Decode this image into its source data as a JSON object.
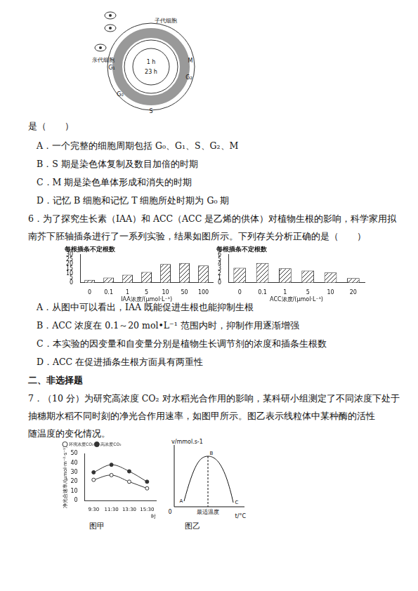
{
  "cell_cycle_diagram": {
    "cells": [
      "子代细胞",
      "亲代细胞"
    ],
    "phases": [
      "G₀",
      "G₁",
      "S",
      "G₂",
      "M"
    ],
    "durations": [
      "1 h",
      "23 h"
    ]
  },
  "question5": {
    "stem_tail": "是（　　）",
    "options": [
      "A．一个完整的细胞周期包括 G₀、G₁、S、G₂、M",
      "B．S 期是染色体复制及数目加倍的时期",
      "C．M 期是染色单体形成和消失的时期",
      "D．记忆 B 细胞和记忆 T 细胞所处时期为 G₀ 期"
    ]
  },
  "question6": {
    "stem": [
      "6．为了探究生长素（IAA）和 ACC（ACC 是乙烯的供体）对植物生根的影响，科学家用拟",
      "南芥下胚轴插条进行了一系列实验，结果如图所示。下列存关分析正确的是（　　）"
    ],
    "options": [
      "A．从图中可以看出，IAA 既能促进生根也能抑制生根",
      "B．ACC 浓度在 0.1～20 mol•L⁻¹ 范围内时，抑制作用逐渐增强",
      "C．本实验的因变量和自变量分别是植物生长调节剂的浓度和插条生根数",
      "D．ACC 在促进插条生根方面具有两重性"
    ]
  },
  "section": "二、非选择题",
  "question7": {
    "stem": [
      "7．（10 分）为研究高浓度 CO₂ 对水稻光合作用的影响，某科研小组测定了不同浓度下处于",
      "抽穗期水稻不同时刻的净光合作用速率，如图甲所示。图乙表示线粒体中某种酶的活性",
      "随温度的变化情况。"
    ],
    "figure_captions": [
      "图甲",
      "图乙"
    ],
    "figure_b": {
      "y_label": "v/mmol.s-1",
      "x_label": "t/°C",
      "origin": "0",
      "x_mark": "最适温度",
      "points": [
        "A",
        "B",
        "C"
      ]
    }
  },
  "chart_data": [
    {
      "type": "bar",
      "title": "每根插条不定根数",
      "x_label": "IAA浓度/(μmol·L⁻¹)",
      "categories": [
        "0",
        "0.1",
        "1",
        "5",
        "10",
        "50",
        "100"
      ],
      "values": [
        3,
        5.5,
        8.5,
        11.5,
        20,
        21,
        18.5
      ],
      "color": "#333333",
      "ylim": [
        0,
        30
      ],
      "yticks": [
        0,
        5,
        10,
        15,
        20,
        25,
        30
      ],
      "grid": false
    },
    {
      "type": "bar",
      "title": "每根插条不定根数",
      "x_label": "ACC浓度/(μmol·L⁻¹)",
      "categories": [
        "0",
        "0.1",
        "1",
        "5",
        "10",
        "20"
      ],
      "values": [
        3.2,
        4.2,
        3.1,
        2.6,
        2.2,
        1.0
      ],
      "color": "#333333",
      "ylim": [
        0,
        6
      ],
      "yticks": [
        0,
        1,
        2,
        3,
        4,
        5,
        6
      ],
      "grid": false
    },
    {
      "type": "line",
      "x_label": "时",
      "y_label": "净光合速率/(μmol·m⁻²·s⁻¹)",
      "categories": [
        "9:30",
        "11:30",
        "13:30",
        "15:30"
      ],
      "series": [
        {
          "name": "环境浓度CO₂",
          "color": "#333333",
          "marker": "circle_open",
          "values": [
            22,
            27,
            20,
            13
          ]
        },
        {
          "name": "高浓度CO₂",
          "color": "#333333",
          "marker": "circle",
          "values": [
            30,
            38,
            31,
            20
          ]
        }
      ],
      "ylim": [
        0,
        50
      ],
      "yticks": [
        0,
        10,
        20,
        30,
        40,
        50
      ],
      "legend": "top-left",
      "grid": false
    }
  ]
}
